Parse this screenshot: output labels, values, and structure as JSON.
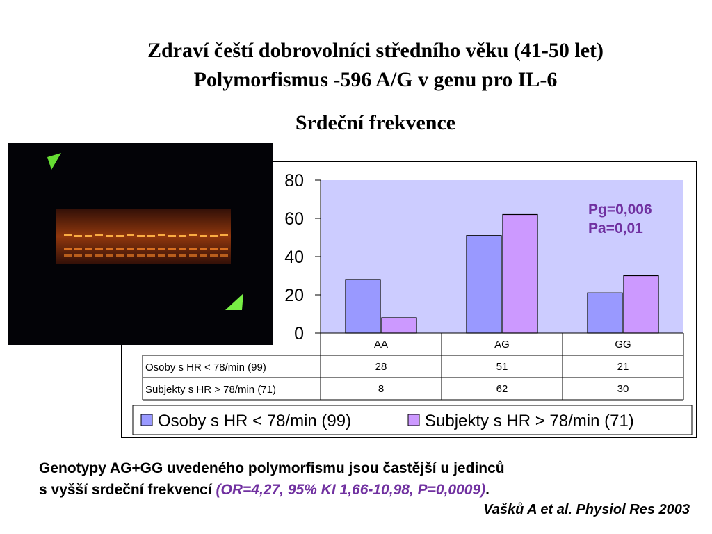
{
  "slide": {
    "title_line1": "Zdraví čeští dobrovolníci středního věku (41-50 let)",
    "title_line2": "Polymorfismus -596 A/G v genu pro IL-6",
    "subtitle": "Srdeční frekvence",
    "annotation_line1": "Pg=0,006",
    "annotation_line2": "Pa=0,01",
    "conclusion_line1": "Genotypy AG+GG uvedeného polymorfismu jsou častější u jedinců",
    "conclusion_line2": "s vyšší srdeční frekvencí",
    "conclusion_stat": "(OR=4,27, 95% KI 1,66-10,98, P=0,0009)",
    "conclusion_end": ".",
    "citation": "Vašků A et al. Physiol Res 2003"
  },
  "chart_data": {
    "type": "bar",
    "title": "",
    "xlabel": "",
    "ylabel": "",
    "categories": [
      "AA",
      "AG",
      "GG"
    ],
    "series": [
      {
        "name": "Osoby s HR < 78/min (99)",
        "values": [
          28,
          51,
          21
        ],
        "color": "#9999ff"
      },
      {
        "name": "Subjekty s HR > 78/min (71)",
        "values": [
          8,
          62,
          30
        ],
        "color": "#cc99ff"
      }
    ],
    "ylim": [
      0,
      80
    ],
    "yticks": [
      0,
      20,
      40,
      60,
      80
    ],
    "plot_background": "#ccccff",
    "grid": false,
    "legend_placement": "bottom",
    "data_table": true
  }
}
